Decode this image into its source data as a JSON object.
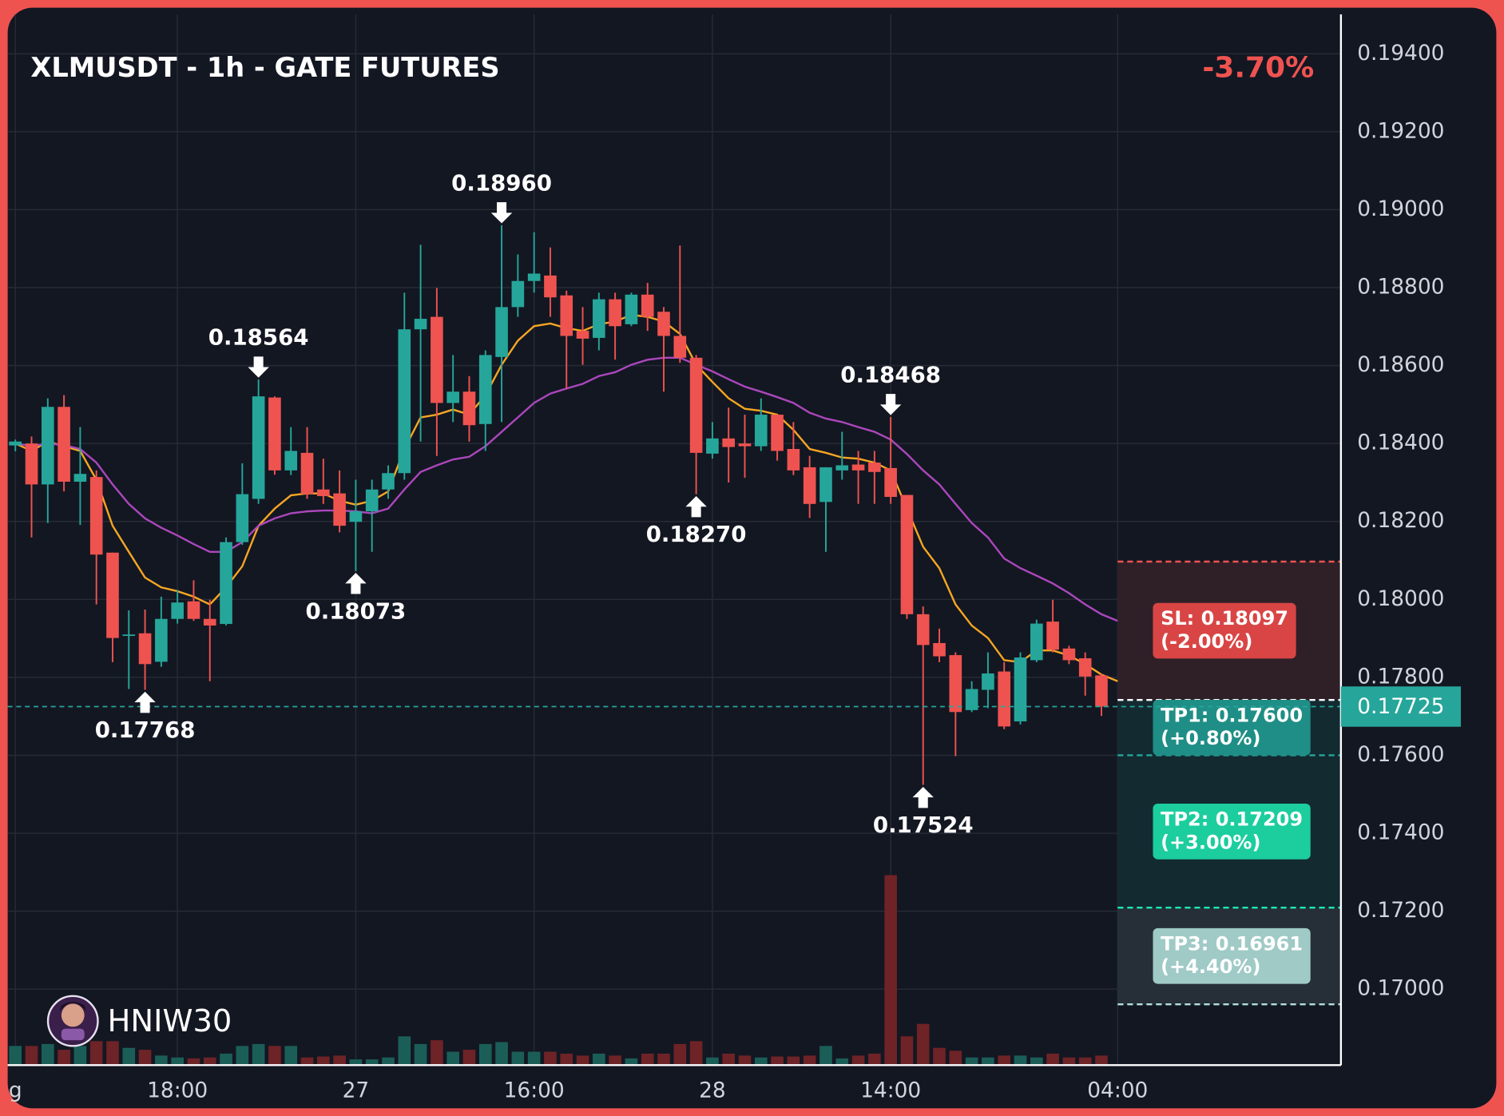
{
  "chart_data": {
    "type": "candlestick",
    "title": "XLMUSDT - 1h - GATE FUTURES",
    "change_label": "-3.70%",
    "watermark": "HNIW30",
    "categories": [
      "g",
      null,
      null,
      null,
      null,
      null,
      null,
      null,
      null,
      null,
      "18:00",
      null,
      null,
      null,
      null,
      null,
      null,
      null,
      null,
      null,
      null,
      "27",
      null,
      null,
      null,
      null,
      null,
      null,
      null,
      null,
      null,
      null,
      "16:00",
      null,
      null,
      null,
      null,
      null,
      null,
      null,
      null,
      null,
      null,
      "28",
      null,
      null,
      null,
      null,
      null,
      null,
      null,
      null,
      null,
      null,
      "14:00",
      null,
      null,
      null,
      null,
      null,
      null,
      null,
      null,
      null,
      null,
      null,
      null,
      null,
      "04:00"
    ],
    "open": [
      0.18395,
      0.184,
      0.18295,
      0.18494,
      0.18302,
      0.18314,
      0.1812,
      0.17908,
      0.17913,
      0.1784,
      0.1795,
      0.17995,
      0.1795,
      0.17937,
      0.18147,
      0.18258,
      0.18518,
      0.18331,
      0.18376,
      0.18282,
      0.18272,
      0.18199,
      0.18226,
      0.18282,
      0.18324,
      0.18693,
      0.18725,
      0.18504,
      0.18533,
      0.1845,
      0.18622,
      0.1875,
      0.18817,
      0.18831,
      0.1878,
      0.18689,
      0.18671,
      0.1877,
      0.18706,
      0.18782,
      0.18738,
      0.18676,
      0.1862,
      0.18374,
      0.18413,
      0.184,
      0.18393,
      0.18474,
      0.18386,
      0.18339,
      0.1825,
      0.18331,
      0.18346,
      0.18351,
      0.18337,
      0.18268,
      0.17962,
      0.17888,
      0.17857,
      0.17716,
      0.17768,
      0.17815,
      0.17687,
      0.17844,
      0.17943,
      0.17874,
      0.17849,
      0.17805,
      null
    ],
    "high": [
      0.1841,
      0.18418,
      0.18516,
      0.18524,
      0.18442,
      0.18331,
      0.1812,
      0.17972,
      0.17974,
      0.18007,
      0.18024,
      0.18049,
      0.17999,
      0.18159,
      0.18349,
      0.18564,
      0.18521,
      0.18442,
      0.18442,
      0.18361,
      0.18331,
      0.18307,
      0.18307,
      0.18344,
      0.18787,
      0.1891,
      0.18799,
      0.18627,
      0.18573,
      0.18639,
      0.1896,
      0.18885,
      0.18942,
      0.18903,
      0.18792,
      0.1875,
      0.18787,
      0.18787,
      0.18787,
      0.18812,
      0.1875,
      0.18908,
      0.18627,
      0.18455,
      0.18492,
      0.18474,
      0.18516,
      0.18474,
      0.18455,
      0.18368,
      0.18339,
      0.1843,
      0.18381,
      0.18381,
      0.18468,
      0.18268,
      0.17982,
      0.17925,
      0.17864,
      0.1779,
      0.17864,
      0.17839,
      0.17864,
      0.17948,
      0.17999,
      0.17881,
      0.17864,
      0.1781,
      null
    ],
    "low": [
      0.1838,
      0.18159,
      0.18196,
      0.18277,
      0.18191,
      0.17987,
      0.17839,
      0.1777,
      0.17768,
      0.17827,
      0.17938,
      0.17945,
      0.1779,
      0.17933,
      0.1814,
      0.18245,
      0.1832,
      0.18319,
      0.18258,
      0.18245,
      0.18172,
      0.18073,
      0.18122,
      0.18258,
      0.18307,
      0.18405,
      0.18368,
      0.18455,
      0.18405,
      0.18381,
      0.18455,
      0.18725,
      0.18787,
      0.18725,
      0.18541,
      0.18602,
      0.18639,
      0.18615,
      0.18701,
      0.18689,
      0.18533,
      0.18607,
      0.1827,
      0.18361,
      0.183,
      0.18312,
      0.18381,
      0.18356,
      0.18319,
      0.18209,
      0.18122,
      0.18307,
      0.18245,
      0.18245,
      0.18245,
      0.1795,
      0.17524,
      0.17839,
      0.17598,
      0.17711,
      0.17721,
      0.17667,
      0.17679,
      0.17839,
      0.17864,
      0.17834,
      0.17753,
      0.17701,
      null
    ],
    "close": [
      0.18405,
      0.18295,
      0.18494,
      0.18302,
      0.18322,
      0.18115,
      0.17901,
      0.1791,
      0.17834,
      0.1795,
      0.17992,
      0.1795,
      0.17933,
      0.18147,
      0.1827,
      0.18521,
      0.18331,
      0.18381,
      0.1827,
      0.18265,
      0.18189,
      0.18226,
      0.18282,
      0.18324,
      0.18693,
      0.1872,
      0.18504,
      0.18533,
      0.18447,
      0.18627,
      0.1875,
      0.18817,
      0.18836,
      0.18775,
      0.18676,
      0.18669,
      0.1877,
      0.18701,
      0.18782,
      0.18725,
      0.18676,
      0.1862,
      0.18376,
      0.18413,
      0.18391,
      0.18393,
      0.18474,
      0.18381,
      0.18331,
      0.18245,
      0.18339,
      0.18344,
      0.18331,
      0.18327,
      0.18263,
      0.17962,
      0.17883,
      0.17854,
      0.17711,
      0.1777,
      0.1781,
      0.17674,
      0.17851,
      0.17938,
      0.17871,
      0.17844,
      0.17802,
      0.17725,
      null
    ],
    "up_color": "#26a69a",
    "down_color": "#ef5350",
    "volume": [
      20,
      20,
      22,
      16,
      20,
      25,
      25,
      18,
      16,
      10,
      8,
      7,
      8,
      12,
      20,
      22,
      20,
      20,
      8,
      9,
      10,
      6,
      6,
      8,
      30,
      22,
      26,
      14,
      16,
      22,
      24,
      14,
      14,
      14,
      12,
      10,
      12,
      10,
      7,
      12,
      12,
      22,
      25,
      8,
      12,
      10,
      8,
      9,
      9,
      10,
      20,
      7,
      10,
      12,
      198,
      30,
      43,
      18,
      15,
      8,
      8,
      10,
      10,
      8,
      12,
      8,
      8,
      10,
      null
    ],
    "volume_up_color": "#1b5e58",
    "volume_down_color": "#6e2327",
    "series": [
      {
        "color": "#f5a623",
        "values": [
          0.184,
          0.18381,
          0.18405,
          0.18393,
          0.18381,
          0.18307,
          0.18189,
          0.18122,
          0.18056,
          0.18031,
          0.18021,
          0.18007,
          0.17987,
          0.18031,
          0.18085,
          0.18189,
          0.18233,
          0.18267,
          0.18272,
          0.18272,
          0.18253,
          0.18243,
          0.18253,
          0.18277,
          0.18386,
          0.18467,
          0.18474,
          0.18487,
          0.18474,
          0.18524,
          0.18602,
          0.18664,
          0.18701,
          0.18708,
          0.18696,
          0.18689,
          0.18706,
          0.18713,
          0.1873,
          0.18725,
          0.18713,
          0.18681,
          0.18602,
          0.18558,
          0.18516,
          0.18489,
          0.18484,
          0.18474,
          0.18435,
          0.18386,
          0.18376,
          0.18364,
          0.18361,
          0.18351,
          0.18331,
          0.18233,
          0.18135,
          0.1808,
          0.17987,
          0.17933,
          0.17901,
          0.17844,
          0.17839,
          0.17869,
          0.17869,
          0.17856,
          0.17834,
          0.17807,
          0.1779
        ]
      },
      {
        "color": "#ab47bc",
        "values": [
          0.184,
          0.18393,
          0.184,
          0.18396,
          0.18386,
          0.18351,
          0.18295,
          0.18245,
          0.18208,
          0.18184,
          0.18164,
          0.18142,
          0.18122,
          0.18122,
          0.18147,
          0.18189,
          0.18208,
          0.18221,
          0.18226,
          0.18228,
          0.18228,
          0.18226,
          0.18221,
          0.18233,
          0.18282,
          0.18327,
          0.18344,
          0.18359,
          0.18366,
          0.18393,
          0.1843,
          0.18467,
          0.18504,
          0.18528,
          0.18541,
          0.18553,
          0.18573,
          0.18583,
          0.18602,
          0.18615,
          0.1862,
          0.1862,
          0.18602,
          0.18585,
          0.18565,
          0.18546,
          0.18533,
          0.18519,
          0.18504,
          0.18479,
          0.18464,
          0.18455,
          0.18442,
          0.1843,
          0.1841,
          0.18373,
          0.18331,
          0.18295,
          0.18245,
          0.18196,
          0.18159,
          0.18105,
          0.1808,
          0.18061,
          0.18041,
          0.18016,
          0.17987,
          0.17962,
          0.17945
        ]
      }
    ],
    "ylim": [
      0.16805,
      0.19501
    ],
    "yticks": [
      {
        "value": 0.17,
        "label": "0.17000"
      },
      {
        "value": 0.172,
        "label": "0.17200"
      },
      {
        "value": 0.174,
        "label": "0.17400"
      },
      {
        "value": 0.176,
        "label": "0.17600"
      },
      {
        "value": 0.178,
        "label": "0.17800"
      },
      {
        "value": 0.18,
        "label": "0.18000"
      },
      {
        "value": 0.182,
        "label": "0.18200"
      },
      {
        "value": 0.184,
        "label": "0.18400"
      },
      {
        "value": 0.186,
        "label": "0.18600"
      },
      {
        "value": 0.188,
        "label": "0.18800"
      },
      {
        "value": 0.19,
        "label": "0.19000"
      },
      {
        "value": 0.192,
        "label": "0.19200"
      },
      {
        "value": 0.194,
        "label": "0.19400"
      }
    ],
    "grid": true,
    "last_price": {
      "value": 0.17725,
      "label": "0.17725",
      "color": "#26a69a"
    },
    "annotations": [
      {
        "category_index": 8,
        "kind": "low",
        "value": 0.17768,
        "label": "0.17768"
      },
      {
        "category_index": 15,
        "kind": "high",
        "value": 0.18564,
        "label": "0.18564"
      },
      {
        "category_index": 21,
        "kind": "low",
        "value": 0.18073,
        "label": "0.18073"
      },
      {
        "category_index": 30,
        "kind": "high",
        "value": 0.1896,
        "label": "0.18960"
      },
      {
        "category_index": 42,
        "kind": "low",
        "value": 0.1827,
        "label": "0.18270"
      },
      {
        "category_index": 54,
        "kind": "high",
        "value": 0.18468,
        "label": "0.18468"
      },
      {
        "category_index": 56,
        "kind": "low",
        "value": 0.17524,
        "label": "0.17524"
      }
    ],
    "entry": 0.17742,
    "levels": [
      {
        "value": 0.18097,
        "label": "SL: 0.18097",
        "change": "(-2.00%)",
        "color": "#ef5350",
        "box_color": "#d94545",
        "zone_color": "#2f2028"
      },
      {
        "value": 0.176,
        "label": "TP1: 0.17600",
        "change": "(+0.80%)",
        "color": "#26a69a",
        "box_color": "#1f8e86",
        "zone_color": "#132a31"
      },
      {
        "value": 0.17209,
        "label": "TP2: 0.17209",
        "change": "(+3.00%)",
        "color": "#1de9b6",
        "box_color": "#1ccd9e",
        "zone_color": "#132a31"
      },
      {
        "value": 0.16961,
        "label": "TP3: 0.16961",
        "change": "(+4.40%)",
        "color": "#b2dfdb",
        "box_color": "#9fcac6",
        "zone_color": "#262e37"
      }
    ]
  }
}
